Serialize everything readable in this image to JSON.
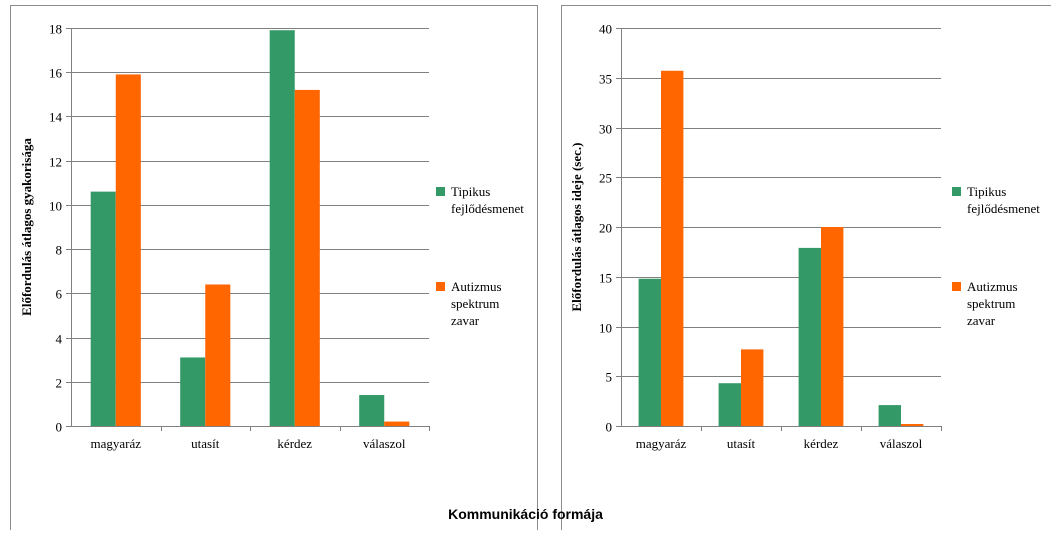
{
  "caption": "Kommunikáció formája",
  "colors": {
    "green": "#339966",
    "orange": "#ff6600",
    "grid": "#808080",
    "border": "#8c8c8c"
  },
  "chart_data": [
    {
      "type": "bar",
      "ylabel": "Előfordulás átlagos gyakorisága",
      "xlabel": "",
      "ylim": [
        0,
        18
      ],
      "yticks": [
        0,
        2,
        4,
        6,
        8,
        10,
        12,
        14,
        16,
        18
      ],
      "grid": true,
      "legend_position": "right",
      "categories": [
        "magyaráz",
        "utasít",
        "kérdez",
        "válaszol"
      ],
      "series": [
        {
          "name": "Tipikus fejlődésmenet",
          "legend_lines": [
            "Tipikus",
            "fejlődésmenet"
          ],
          "color": "#339966",
          "values": [
            10.6,
            3.1,
            17.9,
            1.4
          ]
        },
        {
          "name": "Autizmus spektrum zavar",
          "legend_lines": [
            "Autizmus",
            "spektrum",
            "zavar"
          ],
          "color": "#ff6600",
          "values": [
            15.9,
            6.4,
            15.2,
            0.2
          ]
        }
      ]
    },
    {
      "type": "bar",
      "ylabel": "Előfordulás átlagos ideje (sec.)",
      "xlabel": "",
      "ylim": [
        0,
        40
      ],
      "yticks": [
        0,
        5,
        10,
        15,
        20,
        25,
        30,
        35,
        40
      ],
      "grid": true,
      "legend_position": "right",
      "categories": [
        "magyaráz",
        "utasít",
        "kérdez",
        "válaszol"
      ],
      "series": [
        {
          "name": "Tipikus fejlődésmenet",
          "legend_lines": [
            "Tipikus",
            "fejlődésmenet"
          ],
          "color": "#339966",
          "values": [
            14.8,
            4.3,
            17.9,
            2.1
          ]
        },
        {
          "name": "Autizmus spektrum zavar",
          "legend_lines": [
            "Autizmus",
            "spektrum",
            "zavar"
          ],
          "color": "#ff6600",
          "values": [
            35.7,
            7.7,
            20.0,
            0.2
          ]
        }
      ]
    }
  ]
}
